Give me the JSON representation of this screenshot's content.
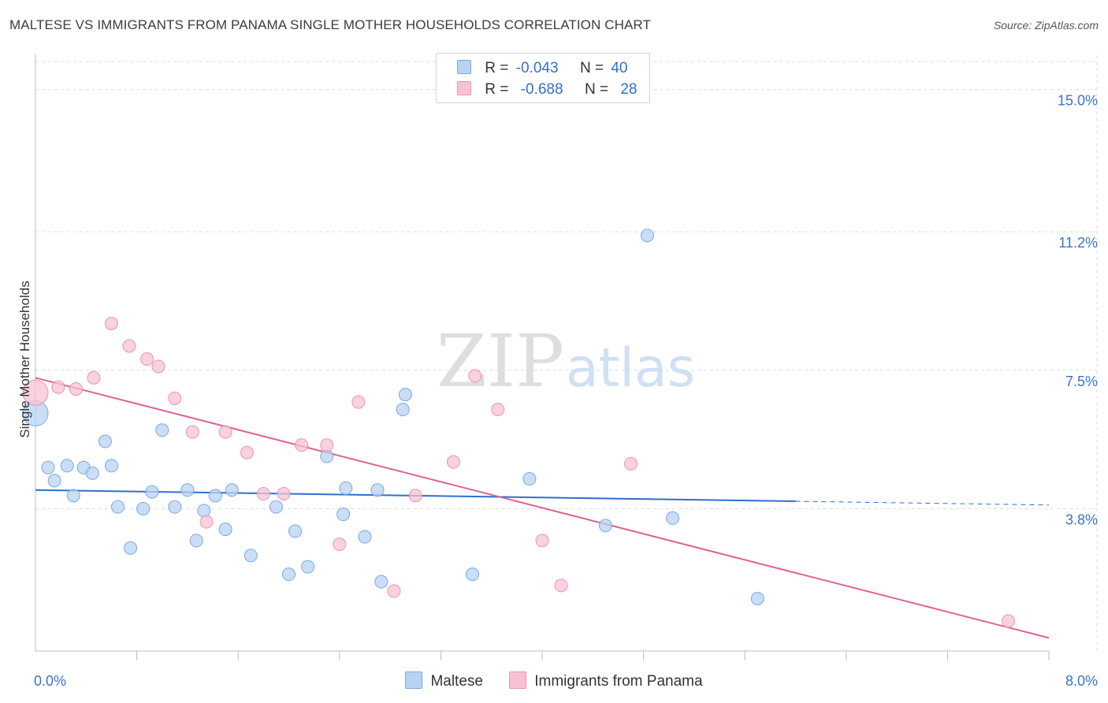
{
  "header": {
    "title": "MALTESE VS IMMIGRANTS FROM PANAMA SINGLE MOTHER HOUSEHOLDS CORRELATION CHART",
    "source": "Source: ZipAtlas.com"
  },
  "watermark": {
    "zip": "ZIP",
    "atlas": "atlas"
  },
  "legend": {
    "r_label": "R =",
    "n_label": "N =",
    "series": [
      {
        "r": "-0.043",
        "n": "40"
      },
      {
        "r": "-0.688",
        "n": "28"
      }
    ]
  },
  "colors": {
    "maltese_fill": "#b8d3f3",
    "maltese_stroke": "#7aa7e0",
    "maltese_line": "#2f6fd0",
    "panama_fill": "#f7c3d3",
    "panama_stroke": "#ea93b0",
    "panama_line": "#e0628e",
    "axis_tick_text": "#3a73c9",
    "grid": "#dcdcdc"
  },
  "chart_data": {
    "type": "scatter",
    "title": "MALTESE VS IMMIGRANTS FROM PANAMA SINGLE MOTHER HOUSEHOLDS CORRELATION CHART",
    "xlabel": "",
    "ylabel": "Single Mother Households",
    "xlim": [
      0,
      8
    ],
    "ylim": [
      0,
      15.75
    ],
    "x_tick_labels": [
      "0.0%",
      "8.0%"
    ],
    "y_ticks": [
      3.8,
      7.5,
      11.2,
      15.0
    ],
    "y_tick_labels": [
      "3.8%",
      "7.5%",
      "11.2%",
      "15.0%"
    ],
    "legend_position": "bottom",
    "series": [
      {
        "name": "Maltese",
        "r": -0.043,
        "n": 40,
        "trend": {
          "x0": 0.0,
          "y0": 4.3,
          "x1": 6.0,
          "y1": 4.0,
          "dash_to_x": 8.0,
          "dash_to_y": 3.9
        },
        "points": [
          {
            "x": 0.0,
            "y": 6.35,
            "big": true
          },
          {
            "x": 0.1,
            "y": 4.9
          },
          {
            "x": 0.15,
            "y": 4.55
          },
          {
            "x": 0.25,
            "y": 4.95
          },
          {
            "x": 0.3,
            "y": 4.15
          },
          {
            "x": 0.38,
            "y": 4.9
          },
          {
            "x": 0.45,
            "y": 4.75
          },
          {
            "x": 0.55,
            "y": 5.6
          },
          {
            "x": 0.6,
            "y": 4.95
          },
          {
            "x": 0.65,
            "y": 3.85
          },
          {
            "x": 0.75,
            "y": 2.75
          },
          {
            "x": 0.85,
            "y": 3.8
          },
          {
            "x": 0.92,
            "y": 4.25
          },
          {
            "x": 1.0,
            "y": 5.9
          },
          {
            "x": 1.1,
            "y": 3.85
          },
          {
            "x": 1.2,
            "y": 4.3
          },
          {
            "x": 1.27,
            "y": 2.95
          },
          {
            "x": 1.33,
            "y": 3.75
          },
          {
            "x": 1.42,
            "y": 4.15
          },
          {
            "x": 1.5,
            "y": 3.25
          },
          {
            "x": 1.55,
            "y": 4.3
          },
          {
            "x": 1.7,
            "y": 2.55
          },
          {
            "x": 1.9,
            "y": 3.85
          },
          {
            "x": 2.0,
            "y": 2.05
          },
          {
            "x": 2.05,
            "y": 3.2
          },
          {
            "x": 2.15,
            "y": 2.25
          },
          {
            "x": 2.3,
            "y": 5.2
          },
          {
            "x": 2.43,
            "y": 3.65
          },
          {
            "x": 2.45,
            "y": 4.35
          },
          {
            "x": 2.6,
            "y": 3.05
          },
          {
            "x": 2.7,
            "y": 4.3
          },
          {
            "x": 2.73,
            "y": 1.85
          },
          {
            "x": 2.9,
            "y": 6.45
          },
          {
            "x": 2.92,
            "y": 6.85
          },
          {
            "x": 3.45,
            "y": 2.05
          },
          {
            "x": 3.9,
            "y": 4.6
          },
          {
            "x": 4.5,
            "y": 3.35
          },
          {
            "x": 4.83,
            "y": 11.1
          },
          {
            "x": 5.03,
            "y": 3.55
          },
          {
            "x": 5.7,
            "y": 1.4
          }
        ]
      },
      {
        "name": "Immigrants from Panama",
        "r": -0.688,
        "n": 28,
        "trend": {
          "x0": 0.0,
          "y0": 7.3,
          "x1": 8.0,
          "y1": 0.35
        },
        "points": [
          {
            "x": 0.0,
            "y": 6.9,
            "big": true
          },
          {
            "x": 0.18,
            "y": 7.05
          },
          {
            "x": 0.32,
            "y": 7.0
          },
          {
            "x": 0.46,
            "y": 7.3
          },
          {
            "x": 0.6,
            "y": 8.75
          },
          {
            "x": 0.74,
            "y": 8.15
          },
          {
            "x": 0.88,
            "y": 7.8
          },
          {
            "x": 0.97,
            "y": 7.6
          },
          {
            "x": 1.1,
            "y": 6.75
          },
          {
            "x": 1.24,
            "y": 5.85
          },
          {
            "x": 1.35,
            "y": 3.45
          },
          {
            "x": 1.5,
            "y": 5.85
          },
          {
            "x": 1.67,
            "y": 5.3
          },
          {
            "x": 1.8,
            "y": 4.2
          },
          {
            "x": 1.96,
            "y": 4.2
          },
          {
            "x": 2.1,
            "y": 5.5
          },
          {
            "x": 2.3,
            "y": 5.5
          },
          {
            "x": 2.4,
            "y": 2.85
          },
          {
            "x": 2.55,
            "y": 6.65
          },
          {
            "x": 2.83,
            "y": 1.6
          },
          {
            "x": 3.0,
            "y": 4.15
          },
          {
            "x": 3.3,
            "y": 5.05
          },
          {
            "x": 3.47,
            "y": 7.35
          },
          {
            "x": 3.65,
            "y": 6.45
          },
          {
            "x": 4.0,
            "y": 2.95
          },
          {
            "x": 4.15,
            "y": 1.75
          },
          {
            "x": 4.7,
            "y": 5.0
          },
          {
            "x": 7.68,
            "y": 0.8
          }
        ]
      }
    ]
  },
  "bottom_legend": {
    "items": [
      "Maltese",
      "Immigrants from Panama"
    ]
  }
}
